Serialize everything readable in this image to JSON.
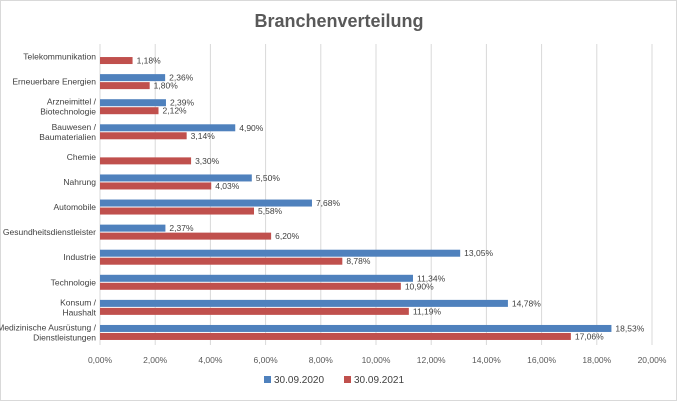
{
  "chart_data": {
    "type": "bar",
    "orientation": "horizontal",
    "title": "Branchenverteilung",
    "xlabel": "",
    "ylabel": "",
    "xlim": [
      0,
      20
    ],
    "grid": true,
    "legend_position": "bottom",
    "categories": [
      [
        "Telekommunikation"
      ],
      [
        "Erneuerbare Energien"
      ],
      [
        "Arzneimittel /",
        "Biotechnologie"
      ],
      [
        "Bauwesen /",
        "Baumaterialien"
      ],
      [
        "Chemie"
      ],
      [
        "Nahrung"
      ],
      [
        "Automobile"
      ],
      [
        "Gesundheitsdienstleister"
      ],
      [
        "Industrie"
      ],
      [
        "Technologie"
      ],
      [
        "Konsum /",
        "Haushalt"
      ],
      [
        "Medizinische Ausrüstung /",
        "Dienstleistungen"
      ]
    ],
    "series": [
      {
        "name": "30.09.2020",
        "color": "#4f81bd",
        "values": [
          null,
          2.36,
          2.39,
          4.9,
          null,
          5.5,
          7.68,
          2.37,
          13.05,
          11.34,
          14.78,
          18.53
        ],
        "labels": [
          null,
          "2,36%",
          "2,39%",
          "4,90%",
          null,
          "5,50%",
          "7,68%",
          "2,37%",
          "13,05%",
          "11,34%",
          "14,78%",
          "18,53%"
        ]
      },
      {
        "name": "30.09.2021",
        "color": "#c0504d",
        "values": [
          1.18,
          1.8,
          2.12,
          3.14,
          3.3,
          4.03,
          5.58,
          6.2,
          8.78,
          10.9,
          11.19,
          17.06
        ],
        "labels": [
          "1,18%",
          "1,80%",
          "2,12%",
          "3,14%",
          "3,30%",
          "4,03%",
          "5,58%",
          "6,20%",
          "8,78%",
          "10,90%",
          "11,19%",
          "17,06%"
        ]
      }
    ],
    "xticks": [
      0,
      2,
      4,
      6,
      8,
      10,
      12,
      14,
      16,
      18,
      20
    ],
    "xtick_labels": [
      "0,00%",
      "2,00%",
      "4,00%",
      "6,00%",
      "8,00%",
      "10,00%",
      "12,00%",
      "14,00%",
      "16,00%",
      "18,00%",
      "20,00%"
    ]
  }
}
